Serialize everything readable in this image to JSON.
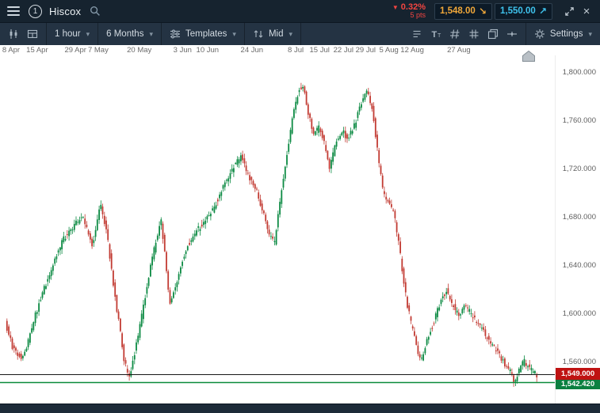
{
  "topbar": {
    "module_number": "1",
    "instrument": "Hiscox",
    "change_pct": "0.32%",
    "change_pts": "5 pts",
    "sell_price": "1,548.00",
    "buy_price": "1,550.00"
  },
  "toolbar": {
    "interval": "1 hour",
    "range": "6 Months",
    "templates": "Templates",
    "price_type": "Mid",
    "settings": "Settings"
  },
  "icons": {
    "down_triangle": "▼",
    "caret": "▾",
    "sell_arrow": "↘",
    "buy_arrow": "↗",
    "close": "×"
  },
  "colors": {
    "sell_accent": "#efa73a",
    "buy_accent": "#3fc2ec",
    "negative": "#f34541",
    "topbar_bg": "#16232f",
    "toolbar_bg": "#243343"
  },
  "chart_data": {
    "type": "candlestick",
    "instrument": "Hiscox",
    "interval": "1 hour",
    "range": "6 Months",
    "price_source": "Mid",
    "grid": false,
    "x_ticks": [
      "8 Apr",
      "15 Apr",
      "29 Apr",
      "7 May",
      "20 May",
      "3 Jun",
      "10 Jun",
      "24 Jun",
      "8 Jul",
      "15 Jul",
      "22 Jul",
      "29 Jul",
      "5 Aug",
      "12 Aug",
      "27 Aug"
    ],
    "x_tick_pos": [
      0.02,
      0.067,
      0.136,
      0.177,
      0.251,
      0.329,
      0.374,
      0.454,
      0.533,
      0.576,
      0.619,
      0.659,
      0.701,
      0.743,
      0.827
    ],
    "y_tick_values": [
      1800,
      1760,
      1720,
      1680,
      1640,
      1600,
      1560
    ],
    "y_tick_labels": [
      "1,800.000",
      "1,760.000",
      "1,720.000",
      "1,680.000",
      "1,640.000",
      "1,600.000",
      "1,560.000"
    ],
    "ylim": [
      1525,
      1814
    ],
    "current_price": 1549.0,
    "current_price_label": "1,549.000",
    "support_level": 1542.42,
    "support_label": "1,542.420",
    "colors": {
      "up": "#0c8a43",
      "down": "#c23b33",
      "current_line": "#151515",
      "support_line": "#0a8a3a",
      "current_tag_bg": "#bf1212",
      "support_tag_bg": "#0b8040"
    },
    "candles_span": [
      0.011,
      0.969
    ],
    "path": [
      [
        0.0,
        1592
      ],
      [
        0.015,
        1570
      ],
      [
        0.033,
        1562
      ],
      [
        0.048,
        1585
      ],
      [
        0.063,
        1608
      ],
      [
        0.081,
        1630
      ],
      [
        0.096,
        1648
      ],
      [
        0.11,
        1662
      ],
      [
        0.13,
        1672
      ],
      [
        0.145,
        1683
      ],
      [
        0.155,
        1668
      ],
      [
        0.164,
        1655
      ],
      [
        0.179,
        1690
      ],
      [
        0.191,
        1668
      ],
      [
        0.203,
        1625
      ],
      [
        0.215,
        1588
      ],
      [
        0.224,
        1560
      ],
      [
        0.233,
        1546
      ],
      [
        0.245,
        1570
      ],
      [
        0.257,
        1598
      ],
      [
        0.269,
        1628
      ],
      [
        0.281,
        1655
      ],
      [
        0.293,
        1678
      ],
      [
        0.301,
        1645
      ],
      [
        0.309,
        1608
      ],
      [
        0.319,
        1620
      ],
      [
        0.331,
        1640
      ],
      [
        0.343,
        1656
      ],
      [
        0.358,
        1668
      ],
      [
        0.373,
        1674
      ],
      [
        0.388,
        1684
      ],
      [
        0.403,
        1698
      ],
      [
        0.418,
        1712
      ],
      [
        0.43,
        1722
      ],
      [
        0.443,
        1730
      ],
      [
        0.458,
        1714
      ],
      [
        0.473,
        1702
      ],
      [
        0.485,
        1684
      ],
      [
        0.495,
        1668
      ],
      [
        0.506,
        1657
      ],
      [
        0.518,
        1696
      ],
      [
        0.528,
        1728
      ],
      [
        0.54,
        1760
      ],
      [
        0.551,
        1784
      ],
      [
        0.56,
        1790
      ],
      [
        0.57,
        1766
      ],
      [
        0.581,
        1748
      ],
      [
        0.591,
        1754
      ],
      [
        0.6,
        1742
      ],
      [
        0.61,
        1722
      ],
      [
        0.622,
        1740
      ],
      [
        0.633,
        1752
      ],
      [
        0.645,
        1744
      ],
      [
        0.657,
        1756
      ],
      [
        0.669,
        1774
      ],
      [
        0.679,
        1786
      ],
      [
        0.69,
        1772
      ],
      [
        0.7,
        1736
      ],
      [
        0.71,
        1702
      ],
      [
        0.721,
        1690
      ],
      [
        0.731,
        1684
      ],
      [
        0.742,
        1652
      ],
      [
        0.752,
        1618
      ],
      [
        0.763,
        1592
      ],
      [
        0.773,
        1574
      ],
      [
        0.782,
        1560
      ],
      [
        0.794,
        1580
      ],
      [
        0.806,
        1592
      ],
      [
        0.818,
        1608
      ],
      [
        0.83,
        1620
      ],
      [
        0.842,
        1606
      ],
      [
        0.854,
        1598
      ],
      [
        0.866,
        1606
      ],
      [
        0.878,
        1598
      ],
      [
        0.89,
        1590
      ],
      [
        0.902,
        1583
      ],
      [
        0.913,
        1576
      ],
      [
        0.925,
        1568
      ],
      [
        0.937,
        1560
      ],
      [
        0.949,
        1552
      ],
      [
        0.958,
        1544
      ],
      [
        0.967,
        1553
      ],
      [
        0.976,
        1560
      ],
      [
        0.985,
        1554
      ],
      [
        1.0,
        1549
      ]
    ]
  }
}
